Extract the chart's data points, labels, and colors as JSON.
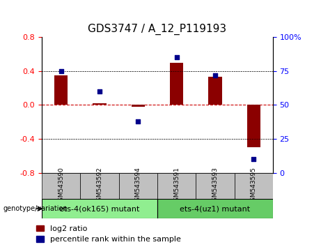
{
  "title": "GDS3747 / A_12_P119193",
  "samples": [
    "GSM543590",
    "GSM543592",
    "GSM543594",
    "GSM543591",
    "GSM543593",
    "GSM543595"
  ],
  "log2_ratio": [
    0.35,
    0.02,
    -0.02,
    0.5,
    0.33,
    -0.5
  ],
  "percentile_rank": [
    75,
    60,
    38,
    85,
    72,
    10
  ],
  "groups": [
    {
      "label": "ets-4(ok165) mutant",
      "samples": [
        0,
        1,
        2
      ],
      "color": "#90EE90"
    },
    {
      "label": "ets-4(uz1) mutant",
      "samples": [
        3,
        4,
        5
      ],
      "color": "#66CC66"
    }
  ],
  "ylim_left": [
    -0.8,
    0.8
  ],
  "ylim_right": [
    0,
    100
  ],
  "yticks_left": [
    -0.8,
    -0.4,
    0.0,
    0.4,
    0.8
  ],
  "yticks_right": [
    0,
    25,
    50,
    75,
    100
  ],
  "bar_color": "#8B0000",
  "dot_color": "#00008B",
  "hline_color": "#CC0000",
  "grid_color": "black",
  "bg_plot": "#FFFFFF",
  "bg_label": "#C0C0C0",
  "title_fontsize": 11,
  "tick_fontsize": 8,
  "legend_fontsize": 8,
  "group_label_fontsize": 8,
  "genotype_label": "genotype/variation"
}
